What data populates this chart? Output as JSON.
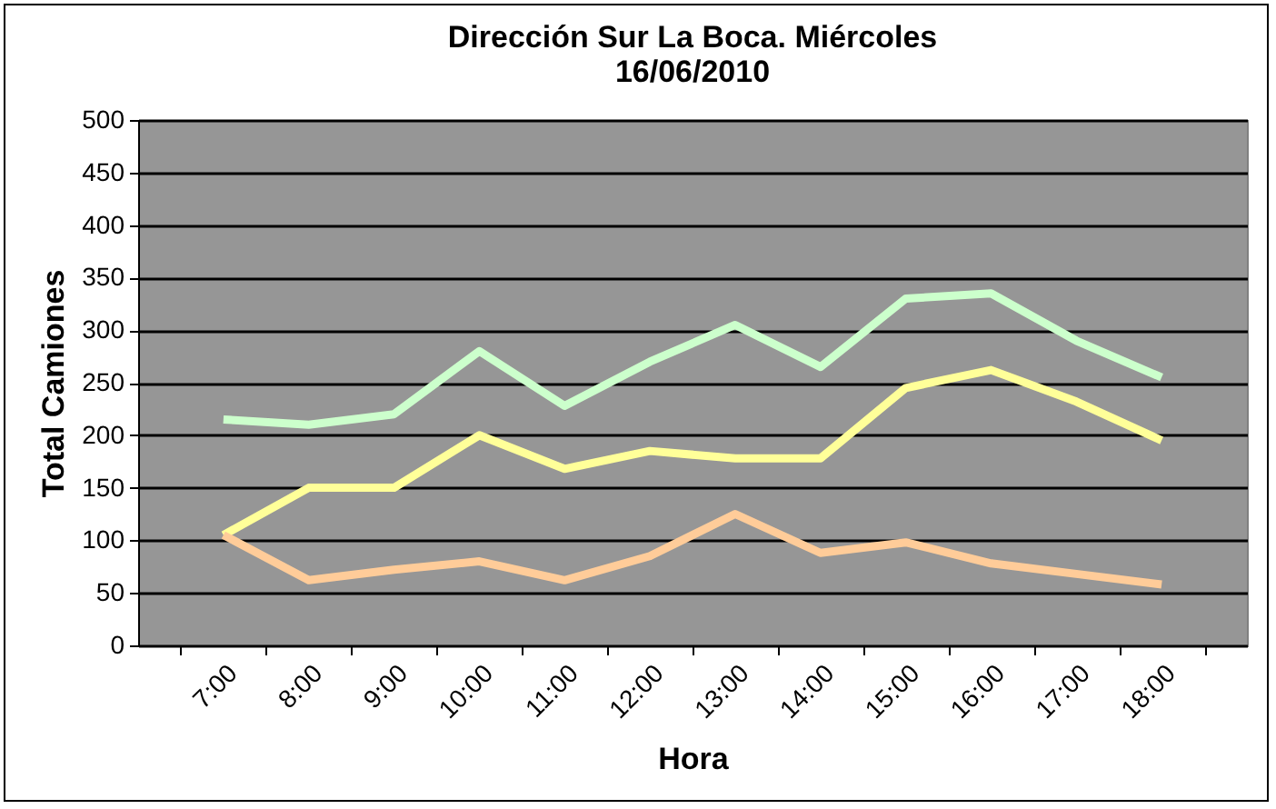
{
  "chart_data": {
    "type": "line",
    "title": [
      "Dirección Sur La Boca. Miércoles",
      "16/06/2010"
    ],
    "xlabel": "Hora",
    "ylabel": "Total Camiones",
    "categories": [
      "7:00",
      "8:00",
      "9:00",
      "10:00",
      "11:00",
      "12:00",
      "13:00",
      "14:00",
      "15:00",
      "16:00",
      "17:00",
      "18:00"
    ],
    "series": [
      {
        "color": "#ccffcc",
        "values": [
          215,
          210,
          220,
          280,
          228,
          270,
          305,
          265,
          330,
          335,
          290,
          255
        ]
      },
      {
        "color": "#ffff99",
        "values": [
          105,
          150,
          150,
          200,
          168,
          185,
          178,
          178,
          245,
          262,
          232,
          195
        ]
      },
      {
        "color": "#ffcc99",
        "values": [
          105,
          62,
          72,
          80,
          62,
          85,
          125,
          88,
          98,
          78,
          68,
          58
        ]
      }
    ],
    "ylim": [
      0,
      500
    ],
    "yticks": [
      0,
      50,
      100,
      150,
      200,
      250,
      300,
      350,
      400,
      450,
      500
    ],
    "grid": "y",
    "legend": false,
    "marker": "none",
    "line_style": "solid"
  }
}
